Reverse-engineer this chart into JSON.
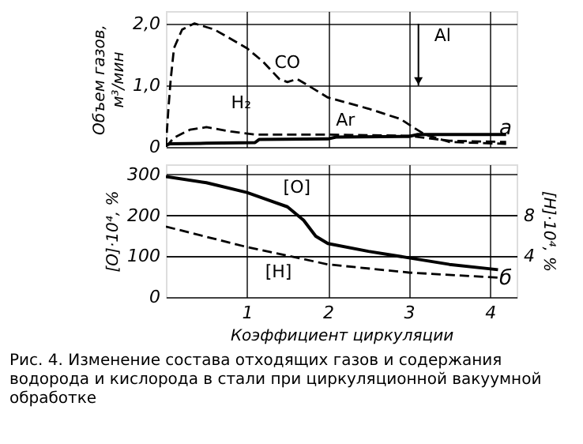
{
  "chart_data": [
    {
      "type": "line",
      "ylabel": "Объем газов, м³/мин",
      "xlim": [
        0,
        4.33
      ],
      "xticks": [
        1,
        2,
        3,
        4
      ],
      "ylim": [
        0,
        2.2
      ],
      "yticks": [
        {
          "value": 0,
          "label": "0"
        },
        {
          "value": 1,
          "label": "1,0"
        },
        {
          "value": 2,
          "label": "2,0"
        }
      ],
      "grid": true,
      "tick_labels": "y",
      "series": [
        {
          "name": "CO",
          "color": "#000000",
          "line_style": "dashed",
          "x": [
            0,
            0.03,
            0.06,
            0.1,
            0.2,
            0.35,
            0.6,
            1.0,
            1.2,
            1.4,
            1.5,
            1.62,
            1.75,
            2.0,
            2.5,
            2.9,
            3.05,
            3.2,
            3.5,
            4.2
          ],
          "values": [
            0,
            0.6,
            1.1,
            1.6,
            1.9,
            2.0,
            1.9,
            1.6,
            1.38,
            1.1,
            1.05,
            1.1,
            1.0,
            0.8,
            0.62,
            0.45,
            0.32,
            0.2,
            0.08,
            0.05
          ]
        },
        {
          "name": "H₂",
          "color": "#000000",
          "line_style": "dashed",
          "x": [
            0,
            0.1,
            0.3,
            0.5,
            0.8,
            1.1,
            2.0,
            3.0,
            3.5,
            4.2
          ],
          "values": [
            0,
            0.15,
            0.28,
            0.32,
            0.25,
            0.2,
            0.2,
            0.18,
            0.1,
            0.08
          ]
        },
        {
          "name": "Ar",
          "color": "#000000",
          "line_style": "solid",
          "x": [
            0,
            0.05,
            0.5,
            1.1,
            1.15,
            2.0,
            2.1,
            3.0,
            3.1,
            4.2
          ],
          "values": [
            0.03,
            0.05,
            0.06,
            0.07,
            0.12,
            0.13,
            0.16,
            0.17,
            0.2,
            0.2
          ]
        }
      ],
      "annotations": [
        "а",
        "Al"
      ]
    },
    {
      "type": "line",
      "xlabel": "Коэффициент циркуляции",
      "ylabel": "[O]·10⁴, %",
      "y2label": "[H]·10⁴, %",
      "xlim": [
        0,
        4.33
      ],
      "xticks": [
        1,
        2,
        3,
        4
      ],
      "ylim": [
        0,
        325
      ],
      "yticks": [
        0,
        100,
        200,
        300
      ],
      "y2lim": [
        0,
        13
      ],
      "y2ticks": [
        4,
        8
      ],
      "grid": true,
      "series": [
        {
          "name": "[O]",
          "color": "#000000",
          "line_style": "solid",
          "x": [
            0,
            0.5,
            1.0,
            1.5,
            1.7,
            1.85,
            2.0,
            2.5,
            3.0,
            3.5,
            4.1
          ],
          "values": [
            295,
            280,
            256,
            221,
            188,
            149,
            131,
            112,
            96,
            80,
            67
          ]
        },
        {
          "name": "[H]",
          "color": "#000000",
          "line_style": "dashed",
          "axis": "y2",
          "x": [
            0,
            1.0,
            2.0,
            3.0,
            4.1
          ],
          "values": [
            6.9,
            4.9,
            3.2,
            2.4,
            1.9
          ]
        }
      ],
      "annotations": [
        "б",
        "Рис. 4. Изменение состава отходящих газов и содержания водорода и кислорода в стали при циркуляционной вакуумной обработке"
      ]
    }
  ]
}
